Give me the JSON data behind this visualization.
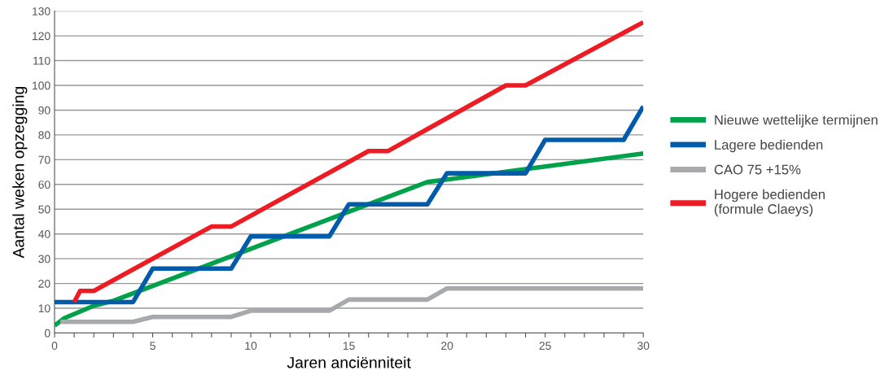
{
  "chart_data": {
    "type": "line",
    "xlabel": "Jaren anciënniteit",
    "ylabel": "Aantal weken opzegging",
    "xlim": [
      0,
      30
    ],
    "ylim": [
      0,
      130
    ],
    "xticks": [
      0,
      {
        "value": 1,
        "label": null
      },
      {
        "value": 2,
        "label": null
      },
      {
        "value": 3,
        "label": null
      },
      {
        "value": 4,
        "label": null
      },
      5,
      {
        "value": 6,
        "label": null
      },
      {
        "value": 7,
        "label": null
      },
      {
        "value": 8,
        "label": null
      },
      {
        "value": 9,
        "label": null
      },
      10,
      {
        "value": 11,
        "label": null
      },
      {
        "value": 12,
        "label": null
      },
      {
        "value": 13,
        "label": null
      },
      {
        "value": 14,
        "label": null
      },
      15,
      {
        "value": 16,
        "label": null
      },
      {
        "value": 17,
        "label": null
      },
      {
        "value": 18,
        "label": null
      },
      {
        "value": 19,
        "label": null
      },
      20,
      {
        "value": 21,
        "label": null
      },
      {
        "value": 22,
        "label": null
      },
      {
        "value": 23,
        "label": null
      },
      {
        "value": 24,
        "label": null
      },
      25,
      {
        "value": 26,
        "label": null
      },
      {
        "value": 27,
        "label": null
      },
      {
        "value": 28,
        "label": null
      },
      {
        "value": 29,
        "label": null
      },
      30
    ],
    "yticks": [
      0,
      10,
      20,
      30,
      40,
      50,
      60,
      70,
      80,
      90,
      100,
      110,
      120,
      130
    ],
    "grid": "y",
    "legend": "right",
    "marker": "none",
    "line_style": "solid",
    "series": [
      {
        "name": "Nieuwe wettelijke termijnen",
        "color": "#00a14b",
        "x": [
          0,
          0.5,
          2,
          3,
          19,
          20,
          30
        ],
        "values": [
          3,
          6,
          11,
          13,
          61,
          62,
          72.5
        ]
      },
      {
        "name": "Lagere bedienden",
        "color": "#005baa",
        "x": [
          0,
          4,
          5,
          9,
          10,
          14,
          15,
          19,
          20,
          24,
          25,
          29,
          30
        ],
        "values": [
          12.5,
          12.5,
          26,
          26,
          39,
          39,
          52,
          52,
          64.5,
          64.5,
          78,
          78,
          91.5
        ]
      },
      {
        "name": "CAO 75 +15%",
        "color": "#a7a9ac",
        "x": [
          0.3,
          4,
          5,
          9,
          10,
          14,
          15,
          19,
          20,
          30
        ],
        "values": [
          4.5,
          4.5,
          6.5,
          6.5,
          9,
          9,
          13.5,
          13.5,
          18,
          18
        ]
      },
      {
        "name": "Hogere bedienden\n(formule Claeys)",
        "color": "#ed1c24",
        "x": [
          1,
          1.3,
          2,
          8,
          9,
          16,
          17,
          23,
          24,
          30
        ],
        "values": [
          12.5,
          17,
          17,
          43,
          43,
          73.5,
          73.5,
          100,
          100,
          125.5
        ]
      }
    ]
  }
}
